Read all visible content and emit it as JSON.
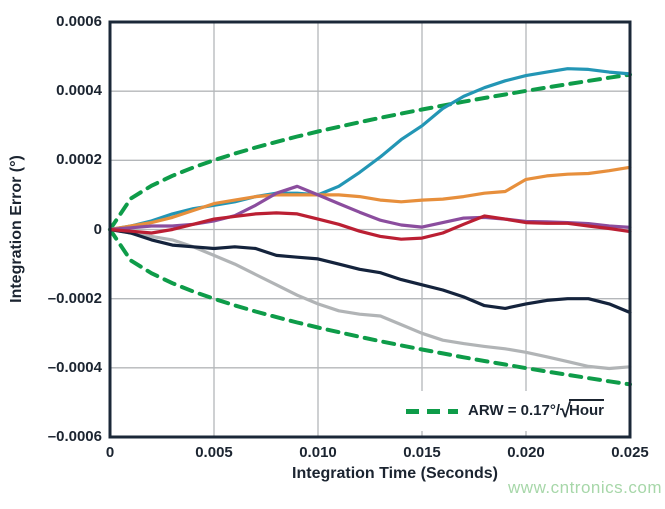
{
  "watermark": "www.cntronics.com",
  "colors": {
    "axis": "#1b2838",
    "grid": "#b4b7ba",
    "background": "#ffffff",
    "green": "#0e9c49",
    "teal": "#2396b5",
    "orange": "#e78f3c",
    "purple": "#8b4d9e",
    "red": "#bb1f33",
    "navy": "#14233c",
    "gray": "#b1b4b6",
    "watermark_green": "#a7d7a9"
  },
  "legend": {
    "full": "ARW = 0.17°/√Hour",
    "prefix": "ARW = 0.17°/",
    "sqrt": "√",
    "radicand": "Hour"
  },
  "chart_data": {
    "type": "line",
    "title": "",
    "xlabel": "Integration Time (Seconds)",
    "ylabel": "Integration Error (°)",
    "xlim": [
      0,
      0.025
    ],
    "ylim": [
      -0.0006,
      0.0006
    ],
    "grid": true,
    "legend_position": "inside-bottom-right",
    "legend_entries": [
      {
        "label": "ARW = 0.17°/√Hour",
        "color": "#0e9c49",
        "dashed": true
      }
    ],
    "x_ticks": [
      0,
      0.005,
      0.01,
      0.015,
      0.02,
      0.025
    ],
    "x_tick_labels": [
      "0",
      "0.005",
      "0.010",
      "0.015",
      "0.020",
      "0.025"
    ],
    "y_ticks": [
      0.0006,
      0.0004,
      0.0002,
      0,
      -0.0002,
      -0.0004,
      -0.0006
    ],
    "y_tick_labels": [
      "0.0006",
      "0.0004",
      "0.0002",
      "0",
      "–0.0002",
      "–0.0004",
      "–0.0006"
    ],
    "x": [
      0,
      0.001,
      0.002,
      0.003,
      0.004,
      0.005,
      0.006,
      0.007,
      0.008,
      0.009,
      0.01,
      0.011,
      0.012,
      0.013,
      0.014,
      0.015,
      0.016,
      0.017,
      0.018,
      0.019,
      0.02,
      0.021,
      0.022,
      0.023,
      0.024,
      0.025
    ],
    "series": [
      {
        "name": "arw-envelope-upper",
        "color": "#0e9c49",
        "dashed": true,
        "width": 4,
        "values": [
          0,
          8.96e-05,
          0.0001267,
          0.0001552,
          0.0001792,
          0.0002003,
          0.0002195,
          0.000237,
          0.0002534,
          0.0002688,
          0.0002833,
          0.0002971,
          0.0003103,
          0.000323,
          0.0003352,
          0.000347,
          0.0003583,
          0.0003694,
          0.0003801,
          0.0003905,
          0.0004007,
          0.0004106,
          0.0004202,
          0.0004297,
          0.0004389,
          0.000448
        ]
      },
      {
        "name": "arw-envelope-lower",
        "color": "#0e9c49",
        "dashed": true,
        "width": 4,
        "values": [
          0,
          -8.96e-05,
          -0.0001267,
          -0.0001552,
          -0.0001792,
          -0.0002003,
          -0.0002195,
          -0.000237,
          -0.0002534,
          -0.0002688,
          -0.0002833,
          -0.0002971,
          -0.0003103,
          -0.000323,
          -0.0003352,
          -0.000347,
          -0.0003583,
          -0.0003694,
          -0.0003801,
          -0.0003905,
          -0.0004007,
          -0.0004106,
          -0.0004202,
          -0.0004297,
          -0.0004389,
          -0.000448
        ]
      },
      {
        "name": "gyro-gray",
        "color": "#b1b4b6",
        "dashed": false,
        "width": 3.2,
        "values": [
          0,
          -1e-05,
          -2e-05,
          -3e-05,
          -5e-05,
          -7.5e-05,
          -0.0001,
          -0.00013,
          -0.00016,
          -0.00019,
          -0.000215,
          -0.000235,
          -0.000245,
          -0.00025,
          -0.000275,
          -0.0003,
          -0.00032,
          -0.00033,
          -0.000338,
          -0.000345,
          -0.000355,
          -0.000368,
          -0.000382,
          -0.000396,
          -0.000402,
          -0.000397
        ]
      },
      {
        "name": "gyro-navy",
        "color": "#14233c",
        "dashed": false,
        "width": 3.2,
        "values": [
          0,
          -1e-05,
          -3e-05,
          -4.5e-05,
          -5e-05,
          -5.5e-05,
          -5e-05,
          -5.5e-05,
          -7.5e-05,
          -8e-05,
          -8.5e-05,
          -0.0001,
          -0.000115,
          -0.000125,
          -0.000145,
          -0.00016,
          -0.000175,
          -0.000195,
          -0.00022,
          -0.000228,
          -0.000215,
          -0.000205,
          -0.0002,
          -0.0002,
          -0.000215,
          -0.00024
        ]
      },
      {
        "name": "gyro-teal",
        "color": "#2396b5",
        "dashed": false,
        "width": 3.2,
        "values": [
          0,
          1e-05,
          2.5e-05,
          4.5e-05,
          6e-05,
          7e-05,
          8e-05,
          9.5e-05,
          0.000105,
          0.000105,
          0.0001,
          0.000125,
          0.000165,
          0.00021,
          0.00026,
          0.0003,
          0.00035,
          0.000385,
          0.00041,
          0.00043,
          0.000445,
          0.000455,
          0.000465,
          0.000463,
          0.000455,
          0.00045
        ]
      },
      {
        "name": "gyro-orange",
        "color": "#e78f3c",
        "dashed": false,
        "width": 3.2,
        "values": [
          0,
          1e-05,
          2e-05,
          3.5e-05,
          5.5e-05,
          7.5e-05,
          8.5e-05,
          9.5e-05,
          0.0001,
          0.0001,
          0.0001,
          0.0001,
          9.5e-05,
          8.5e-05,
          8e-05,
          8.5e-05,
          8.8e-05,
          9.5e-05,
          0.000105,
          0.00011,
          0.000145,
          0.000155,
          0.00016,
          0.000162,
          0.00017,
          0.00018
        ]
      },
      {
        "name": "gyro-purple",
        "color": "#8b4d9e",
        "dashed": false,
        "width": 3.2,
        "values": [
          0,
          5e-06,
          1e-05,
          1e-05,
          1.5e-05,
          2.5e-05,
          4e-05,
          7e-05,
          0.000105,
          0.000125,
          0.0001,
          7.5e-05,
          5e-05,
          2.7e-05,
          1.3e-05,
          7e-06,
          2e-05,
          3.3e-05,
          3.5e-05,
          3e-05,
          2.3e-05,
          2.2e-05,
          2e-05,
          1.7e-05,
          1e-05,
          6e-06
        ]
      },
      {
        "name": "gyro-red",
        "color": "#bb1f33",
        "dashed": false,
        "width": 3.2,
        "values": [
          0,
          -5e-06,
          -1e-05,
          0,
          1.5e-05,
          3e-05,
          3.8e-05,
          4.5e-05,
          4.8e-05,
          4.5e-05,
          3e-05,
          1.5e-05,
          -5e-06,
          -2e-05,
          -2.8e-05,
          -2.5e-05,
          -1e-05,
          1.5e-05,
          3.9e-05,
          3e-05,
          2e-05,
          1.8e-05,
          1.8e-05,
          1e-05,
          3e-06,
          -6e-06
        ]
      }
    ]
  }
}
